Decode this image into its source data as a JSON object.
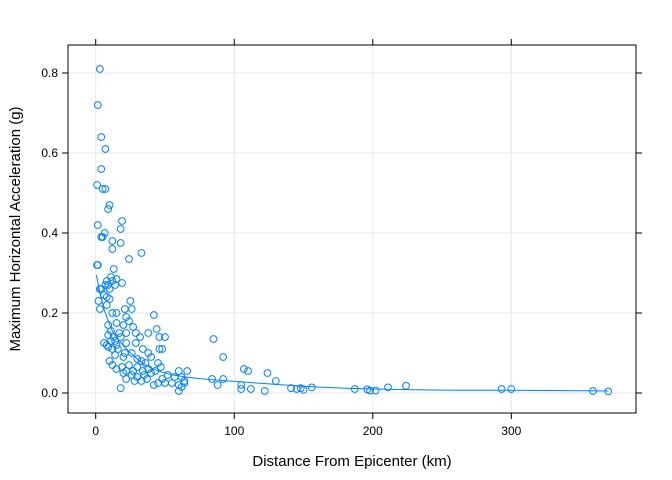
{
  "chart_data": {
    "type": "scatter",
    "title": "",
    "xlabel": "Distance From Epicenter (km)",
    "ylabel": "Maximum Horizontal Acceleration (g)",
    "xlim": [
      -20,
      390
    ],
    "ylim": [
      -0.05,
      0.87
    ],
    "xticks": [
      0,
      100,
      200,
      300
    ],
    "xtick_labels": [
      "0",
      "100",
      "200",
      "300"
    ],
    "yticks": [
      0.0,
      0.2,
      0.4,
      0.6,
      0.8
    ],
    "ytick_labels": [
      "0.0",
      "0.2",
      "0.4",
      "0.6",
      "0.8"
    ],
    "grid": true,
    "colors": {
      "points": "#0080ff",
      "smooth": "#0080ff",
      "grid": "#e6e6e6",
      "frame": "#000000"
    },
    "series": [
      {
        "points": [
          [
            3.0,
            0.81
          ],
          [
            1.5,
            0.72
          ],
          [
            4.0,
            0.64
          ],
          [
            7.0,
            0.61
          ],
          [
            4.0,
            0.56
          ],
          [
            1.0,
            0.52
          ],
          [
            5.0,
            0.51
          ],
          [
            7.0,
            0.51
          ],
          [
            10.0,
            0.47
          ],
          [
            9.0,
            0.46
          ],
          [
            19.0,
            0.43
          ],
          [
            1.5,
            0.42
          ],
          [
            18.0,
            0.41
          ],
          [
            6.5,
            0.4
          ],
          [
            4.0,
            0.39
          ],
          [
            12.0,
            0.38
          ],
          [
            5.0,
            0.39
          ],
          [
            18.0,
            0.375
          ],
          [
            12.0,
            0.36
          ],
          [
            33.0,
            0.35
          ],
          [
            24.0,
            0.335
          ],
          [
            1.0,
            0.32
          ],
          [
            1.5,
            0.32
          ],
          [
            13.0,
            0.31
          ],
          [
            11.0,
            0.29
          ],
          [
            8.0,
            0.28
          ],
          [
            12.0,
            0.28
          ],
          [
            15.0,
            0.285
          ],
          [
            19.0,
            0.275
          ],
          [
            7.0,
            0.27
          ],
          [
            9.0,
            0.27
          ],
          [
            10.0,
            0.26
          ],
          [
            3.0,
            0.26
          ],
          [
            4.0,
            0.26
          ],
          [
            14.0,
            0.27
          ],
          [
            6.0,
            0.245
          ],
          [
            8.0,
            0.24
          ],
          [
            10.0,
            0.235
          ],
          [
            2.0,
            0.23
          ],
          [
            8.0,
            0.22
          ],
          [
            25.0,
            0.23
          ],
          [
            3.0,
            0.21
          ],
          [
            21.0,
            0.21
          ],
          [
            26.0,
            0.21
          ],
          [
            12.0,
            0.2
          ],
          [
            15.0,
            0.2
          ],
          [
            22.0,
            0.19
          ],
          [
            42.0,
            0.195
          ],
          [
            24.0,
            0.18
          ],
          [
            15.0,
            0.175
          ],
          [
            9.0,
            0.17
          ],
          [
            20.0,
            0.17
          ],
          [
            27.0,
            0.165
          ],
          [
            44.0,
            0.16
          ],
          [
            11.0,
            0.155
          ],
          [
            17.0,
            0.15
          ],
          [
            22.0,
            0.15
          ],
          [
            29.0,
            0.15
          ],
          [
            38.0,
            0.15
          ],
          [
            9.0,
            0.145
          ],
          [
            13.0,
            0.14
          ],
          [
            18.0,
            0.14
          ],
          [
            32.0,
            0.14
          ],
          [
            46.0,
            0.14
          ],
          [
            50.0,
            0.14
          ],
          [
            85.0,
            0.135
          ],
          [
            11.0,
            0.13
          ],
          [
            14.0,
            0.13
          ],
          [
            22.0,
            0.125
          ],
          [
            29.0,
            0.125
          ],
          [
            6.0,
            0.125
          ],
          [
            8.0,
            0.12
          ],
          [
            15.0,
            0.12
          ],
          [
            9.0,
            0.115
          ],
          [
            12.0,
            0.11
          ],
          [
            16.0,
            0.11
          ],
          [
            34.0,
            0.11
          ],
          [
            46.0,
            0.11
          ],
          [
            48.0,
            0.11
          ],
          [
            21.0,
            0.1
          ],
          [
            26.0,
            0.1
          ],
          [
            38.0,
            0.1
          ],
          [
            14.0,
            0.095
          ],
          [
            20.0,
            0.09
          ],
          [
            40.0,
            0.09
          ],
          [
            92.0,
            0.09
          ],
          [
            30.0,
            0.085
          ],
          [
            10.0,
            0.08
          ],
          [
            33.0,
            0.08
          ],
          [
            36.0,
            0.075
          ],
          [
            45.0,
            0.075
          ],
          [
            24.0,
            0.07
          ],
          [
            12.0,
            0.07
          ],
          [
            19.0,
            0.065
          ],
          [
            30.0,
            0.065
          ],
          [
            47.0,
            0.065
          ],
          [
            38.0,
            0.06
          ],
          [
            15.0,
            0.06
          ],
          [
            22.0,
            0.055
          ],
          [
            27.0,
            0.055
          ],
          [
            34.0,
            0.055
          ],
          [
            43.0,
            0.055
          ],
          [
            60.0,
            0.055
          ],
          [
            66.0,
            0.055
          ],
          [
            107.0,
            0.06
          ],
          [
            110.0,
            0.055
          ],
          [
            20.0,
            0.05
          ],
          [
            40.0,
            0.05
          ],
          [
            124.0,
            0.05
          ],
          [
            26.0,
            0.045
          ],
          [
            35.0,
            0.045
          ],
          [
            52.0,
            0.045
          ],
          [
            57.0,
            0.04
          ],
          [
            62.0,
            0.04
          ],
          [
            30.0,
            0.04
          ],
          [
            22.0,
            0.035
          ],
          [
            37.0,
            0.035
          ],
          [
            48.0,
            0.035
          ],
          [
            84.0,
            0.035
          ],
          [
            92.0,
            0.035
          ],
          [
            130.0,
            0.03
          ],
          [
            28.0,
            0.03
          ],
          [
            45.0,
            0.025
          ],
          [
            50.0,
            0.025
          ],
          [
            55.0,
            0.025
          ],
          [
            64.0,
            0.025
          ],
          [
            88.0,
            0.02
          ],
          [
            105.0,
            0.02
          ],
          [
            33.0,
            0.03
          ],
          [
            18.0,
            0.012
          ],
          [
            42.0,
            0.02
          ],
          [
            60.0,
            0.02
          ],
          [
            62.0,
            0.015
          ],
          [
            105.0,
            0.01
          ],
          [
            112.0,
            0.01
          ],
          [
            122.0,
            0.005
          ],
          [
            141.0,
            0.012
          ],
          [
            145.0,
            0.01
          ],
          [
            148.0,
            0.012
          ],
          [
            156.0,
            0.014
          ],
          [
            187.0,
            0.01
          ],
          [
            196.0,
            0.009
          ],
          [
            198.0,
            0.006
          ],
          [
            202.0,
            0.006
          ],
          [
            211.0,
            0.014
          ],
          [
            224.0,
            0.018
          ],
          [
            293.0,
            0.01
          ],
          [
            300.0,
            0.01
          ],
          [
            359.0,
            0.005
          ],
          [
            370.0,
            0.004
          ],
          [
            60.0,
            0.005
          ],
          [
            64.0,
            0.03
          ],
          [
            150.0,
            0.008
          ]
        ]
      }
    ],
    "smooth_line": [
      [
        0.5,
        0.295
      ],
      [
        3,
        0.25
      ],
      [
        6,
        0.21
      ],
      [
        9,
        0.18
      ],
      [
        12,
        0.155
      ],
      [
        16,
        0.135
      ],
      [
        20,
        0.118
      ],
      [
        25,
        0.1
      ],
      [
        30,
        0.085
      ],
      [
        35,
        0.072
      ],
      [
        40,
        0.062
      ],
      [
        48,
        0.052
      ],
      [
        56,
        0.045
      ],
      [
        65,
        0.04
      ],
      [
        75,
        0.036
      ],
      [
        85,
        0.033
      ],
      [
        100,
        0.029
      ],
      [
        120,
        0.024
      ],
      [
        140,
        0.019
      ],
      [
        160,
        0.015
      ],
      [
        180,
        0.012
      ],
      [
        200,
        0.01
      ],
      [
        230,
        0.008
      ],
      [
        260,
        0.007
      ],
      [
        300,
        0.007
      ],
      [
        340,
        0.006
      ],
      [
        370,
        0.005
      ]
    ]
  }
}
